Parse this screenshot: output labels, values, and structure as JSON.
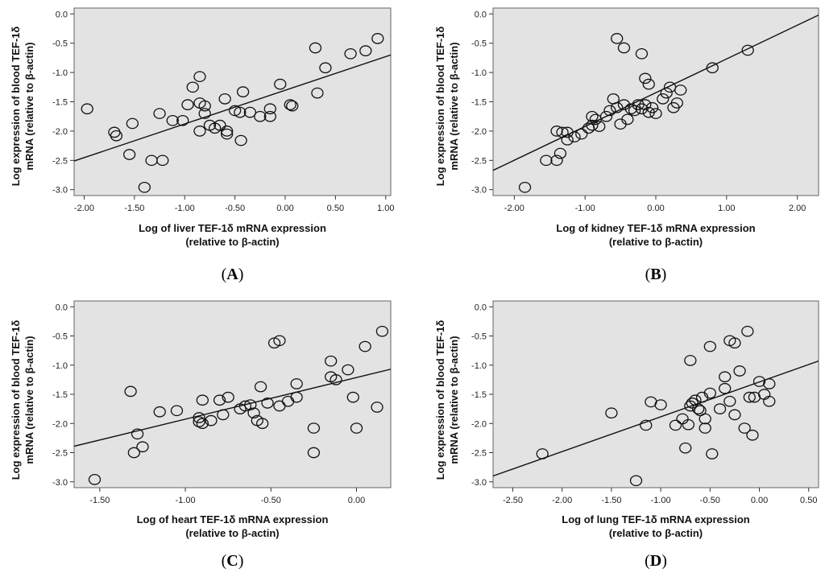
{
  "chart_data": [
    {
      "type": "scatter",
      "panel_label": "A",
      "xlabel": [
        "Log of liver TEF-1δ mRNA expression",
        "(relative to β-actin)"
      ],
      "ylabel": [
        "Log expression of blood TEF-1δ",
        "mRNA (relative to β-actin)"
      ],
      "xlim": [
        -2.1,
        1.05
      ],
      "ylim": [
        -3.1,
        0.1
      ],
      "xticks": [
        -2.0,
        -1.5,
        -1.0,
        -0.5,
        0.0,
        0.5,
        1.0
      ],
      "xtick_labels": [
        "-2.00",
        "-1.50",
        "-1.00",
        "-0.50",
        "0.00",
        "0.50",
        "1.00"
      ],
      "yticks": [
        0.0,
        -0.5,
        -1.0,
        -1.5,
        -2.0,
        -2.5,
        -3.0
      ],
      "ytick_labels": [
        "0.0",
        "-0.5",
        "-1.0",
        "-1.5",
        "-2.0",
        "-2.5",
        "-3.0"
      ],
      "fit_line": {
        "x": [
          -2.1,
          1.05
        ],
        "y": [
          -2.51,
          -0.7
        ]
      },
      "points": [
        [
          -1.97,
          -1.62
        ],
        [
          -1.7,
          -2.02
        ],
        [
          -1.68,
          -2.08
        ],
        [
          -1.52,
          -1.87
        ],
        [
          -1.55,
          -2.4
        ],
        [
          -1.4,
          -2.96
        ],
        [
          -1.33,
          -2.5
        ],
        [
          -1.22,
          -2.5
        ],
        [
          -1.25,
          -1.7
        ],
        [
          -1.12,
          -1.82
        ],
        [
          -1.02,
          -1.82
        ],
        [
          -0.97,
          -1.55
        ],
        [
          -0.92,
          -1.25
        ],
        [
          -0.85,
          -1.07
        ],
        [
          -0.85,
          -1.52
        ],
        [
          -0.8,
          -1.57
        ],
        [
          -0.8,
          -1.7
        ],
        [
          -0.85,
          -2.0
        ],
        [
          -0.75,
          -1.9
        ],
        [
          -0.7,
          -1.95
        ],
        [
          -0.65,
          -1.9
        ],
        [
          -0.6,
          -1.45
        ],
        [
          -0.58,
          -2.0
        ],
        [
          -0.58,
          -2.05
        ],
        [
          -0.5,
          -1.65
        ],
        [
          -0.45,
          -1.68
        ],
        [
          -0.42,
          -1.33
        ],
        [
          -0.35,
          -1.68
        ],
        [
          -0.44,
          -2.16
        ],
        [
          -0.25,
          -1.75
        ],
        [
          -0.15,
          -1.62
        ],
        [
          -0.15,
          -1.75
        ],
        [
          -0.05,
          -1.2
        ],
        [
          0.05,
          -1.55
        ],
        [
          0.07,
          -1.57
        ],
        [
          0.3,
          -0.58
        ],
        [
          0.32,
          -1.35
        ],
        [
          0.4,
          -0.92
        ],
        [
          0.65,
          -0.68
        ],
        [
          0.8,
          -0.63
        ],
        [
          0.92,
          -0.42
        ]
      ]
    },
    {
      "type": "scatter",
      "panel_label": "B",
      "xlabel": [
        "Log of kidney TEF-1δ mRNA expression",
        "(relative to β-actin)"
      ],
      "ylabel": [
        "Log expression of blood TEF-1δ",
        "mRNA (relative to β-actin)"
      ],
      "xlim": [
        -2.3,
        2.3
      ],
      "ylim": [
        -3.1,
        0.1
      ],
      "xticks": [
        -2.0,
        -1.0,
        0.0,
        1.0,
        2.0
      ],
      "xtick_labels": [
        "-2.00",
        "-1.00",
        "0.00",
        "1.00",
        "2.00"
      ],
      "yticks": [
        0.0,
        -0.5,
        -1.0,
        -1.5,
        -2.0,
        -2.5,
        -3.0
      ],
      "ytick_labels": [
        "0.0",
        "-0.5",
        "-1.0",
        "-1.5",
        "-2.0",
        "-2.5",
        "-3.0"
      ],
      "fit_line": {
        "x": [
          -2.3,
          2.3
        ],
        "y": [
          -2.67,
          -0.02
        ]
      },
      "points": [
        [
          -1.85,
          -2.96
        ],
        [
          -1.55,
          -2.5
        ],
        [
          -1.4,
          -2.5
        ],
        [
          -1.35,
          -2.38
        ],
        [
          -1.4,
          -2.0
        ],
        [
          -1.32,
          -2.02
        ],
        [
          -1.25,
          -2.02
        ],
        [
          -1.25,
          -2.15
        ],
        [
          -1.15,
          -2.1
        ],
        [
          -1.05,
          -2.05
        ],
        [
          -0.95,
          -1.95
        ],
        [
          -0.9,
          -1.9
        ],
        [
          -0.9,
          -1.75
        ],
        [
          -0.85,
          -1.8
        ],
        [
          -0.8,
          -1.92
        ],
        [
          -0.7,
          -1.75
        ],
        [
          -0.65,
          -1.65
        ],
        [
          -0.6,
          -1.45
        ],
        [
          -0.55,
          -1.6
        ],
        [
          -0.5,
          -1.88
        ],
        [
          -0.45,
          -1.55
        ],
        [
          -0.4,
          -1.8
        ],
        [
          -0.35,
          -1.62
        ],
        [
          -0.3,
          -1.65
        ],
        [
          -0.25,
          -1.55
        ],
        [
          -0.2,
          -1.62
        ],
        [
          -0.15,
          -1.55
        ],
        [
          -0.1,
          -1.68
        ],
        [
          -0.05,
          -1.6
        ],
        [
          0.0,
          -1.7
        ],
        [
          0.1,
          -1.45
        ],
        [
          0.15,
          -1.35
        ],
        [
          0.2,
          -1.25
        ],
        [
          0.25,
          -1.6
        ],
        [
          0.35,
          -1.3
        ],
        [
          0.3,
          -1.52
        ],
        [
          -0.55,
          -0.42
        ],
        [
          -0.45,
          -0.58
        ],
        [
          -0.2,
          -0.68
        ],
        [
          -0.15,
          -1.1
        ],
        [
          -0.1,
          -1.2
        ],
        [
          0.8,
          -0.92
        ],
        [
          1.3,
          -0.62
        ]
      ]
    },
    {
      "type": "scatter",
      "panel_label": "C",
      "xlabel": [
        "Log of heart TEF-1δ mRNA expression",
        "(relative to β-actin)"
      ],
      "ylabel": [
        "Log expression of blood TEF-1δ",
        "mRNA (relative to β-actin)"
      ],
      "xlim": [
        -1.65,
        0.2
      ],
      "ylim": [
        -3.1,
        0.1
      ],
      "xticks": [
        -1.5,
        -1.0,
        -0.5,
        0.0
      ],
      "xtick_labels": [
        "-1.50",
        "-1.00",
        "-0.50",
        "0.00"
      ],
      "yticks": [
        0.0,
        -0.5,
        -1.0,
        -1.5,
        -2.0,
        -2.5,
        -3.0
      ],
      "ytick_labels": [
        "0.0",
        "-0.5",
        "-1.0",
        "-1.5",
        "-2.0",
        "-2.5",
        "-3.0"
      ],
      "fit_line": {
        "x": [
          -1.65,
          0.2
        ],
        "y": [
          -2.39,
          -1.07
        ]
      },
      "points": [
        [
          -1.53,
          -2.96
        ],
        [
          -1.3,
          -2.5
        ],
        [
          -1.32,
          -1.45
        ],
        [
          -1.28,
          -2.18
        ],
        [
          -1.25,
          -2.4
        ],
        [
          -1.15,
          -1.8
        ],
        [
          -1.05,
          -1.78
        ],
        [
          -0.92,
          -1.9
        ],
        [
          -0.92,
          -1.97
        ],
        [
          -0.9,
          -2.0
        ],
        [
          -0.9,
          -1.6
        ],
        [
          -0.85,
          -1.95
        ],
        [
          -0.8,
          -1.6
        ],
        [
          -0.78,
          -1.85
        ],
        [
          -0.75,
          -1.55
        ],
        [
          -0.68,
          -1.75
        ],
        [
          -0.65,
          -1.7
        ],
        [
          -0.62,
          -1.68
        ],
        [
          -0.6,
          -1.82
        ],
        [
          -0.58,
          -1.95
        ],
        [
          -0.55,
          -2.0
        ],
        [
          -0.52,
          -1.65
        ],
        [
          -0.56,
          -1.37
        ],
        [
          -0.48,
          -0.62
        ],
        [
          -0.45,
          -0.58
        ],
        [
          -0.45,
          -1.7
        ],
        [
          -0.4,
          -1.62
        ],
        [
          -0.35,
          -1.55
        ],
        [
          -0.35,
          -1.32
        ],
        [
          -0.25,
          -2.08
        ],
        [
          -0.25,
          -2.5
        ],
        [
          -0.15,
          -1.2
        ],
        [
          -0.15,
          -0.93
        ],
        [
          -0.12,
          -1.25
        ],
        [
          -0.05,
          -1.08
        ],
        [
          -0.02,
          -1.55
        ],
        [
          0.0,
          -2.08
        ],
        [
          0.05,
          -0.68
        ],
        [
          0.12,
          -1.72
        ],
        [
          0.15,
          -0.42
        ]
      ]
    },
    {
      "type": "scatter",
      "panel_label": "D",
      "xlabel": [
        "Log of lung TEF-1δ mRNA expression",
        "(relative to β-actin)"
      ],
      "ylabel": [
        "Log expression of blood TEF-1δ",
        "mRNA (relative to β-actin)"
      ],
      "xlim": [
        -2.7,
        0.6
      ],
      "ylim": [
        -3.1,
        0.1
      ],
      "xticks": [
        -2.5,
        -2.0,
        -1.5,
        -1.0,
        -0.5,
        0.0,
        0.5
      ],
      "xtick_labels": [
        "-2.50",
        "-2.00",
        "-1.50",
        "-1.00",
        "-0.50",
        "0.00",
        "0.50"
      ],
      "yticks": [
        0.0,
        -0.5,
        -1.0,
        -1.5,
        -2.0,
        -2.5,
        -3.0
      ],
      "ytick_labels": [
        "0.0",
        "-0.5",
        "-1.0",
        "-1.5",
        "-2.0",
        "-2.5",
        "-3.0"
      ],
      "fit_line": {
        "x": [
          -2.7,
          0.6
        ],
        "y": [
          -2.9,
          -0.93
        ]
      },
      "points": [
        [
          -2.2,
          -2.52
        ],
        [
          -1.5,
          -1.82
        ],
        [
          -1.25,
          -2.98
        ],
        [
          -1.15,
          -2.03
        ],
        [
          -1.1,
          -1.63
        ],
        [
          -1.0,
          -1.68
        ],
        [
          -0.85,
          -2.03
        ],
        [
          -0.78,
          -1.92
        ],
        [
          -0.75,
          -2.42
        ],
        [
          -0.72,
          -2.02
        ],
        [
          -0.7,
          -1.7
        ],
        [
          -0.68,
          -1.65
        ],
        [
          -0.65,
          -1.6
        ],
        [
          -0.62,
          -1.75
        ],
        [
          -0.6,
          -1.78
        ],
        [
          -0.58,
          -1.55
        ],
        [
          -0.55,
          -1.92
        ],
        [
          -0.55,
          -2.08
        ],
        [
          -0.5,
          -1.48
        ],
        [
          -0.48,
          -2.52
        ],
        [
          -0.5,
          -0.68
        ],
        [
          -0.7,
          -0.92
        ],
        [
          -0.4,
          -1.75
        ],
        [
          -0.35,
          -1.2
        ],
        [
          -0.35,
          -1.4
        ],
        [
          -0.3,
          -0.58
        ],
        [
          -0.25,
          -0.62
        ],
        [
          -0.3,
          -1.62
        ],
        [
          -0.25,
          -1.85
        ],
        [
          -0.2,
          -1.1
        ],
        [
          -0.15,
          -2.08
        ],
        [
          -0.12,
          -0.42
        ],
        [
          -0.1,
          -1.55
        ],
        [
          -0.07,
          -2.2
        ],
        [
          -0.05,
          -1.55
        ],
        [
          0.0,
          -1.28
        ],
        [
          0.05,
          -1.5
        ],
        [
          0.1,
          -1.62
        ],
        [
          0.1,
          -1.32
        ]
      ]
    }
  ]
}
